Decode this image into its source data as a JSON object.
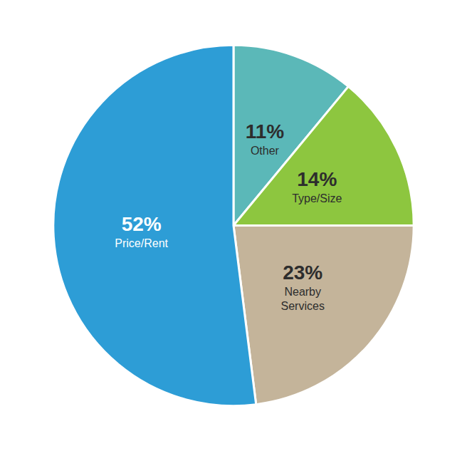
{
  "chart_data": {
    "type": "pie",
    "categories": [
      "Other",
      "Type/Size",
      "Nearby\nServices",
      "Price/Rent"
    ],
    "values": [
      11,
      14,
      23,
      52
    ],
    "value_labels": [
      "11%",
      "14%",
      "23%",
      "52%"
    ],
    "colors": [
      "#5BB8B8",
      "#8DC63F",
      "#C4B49A",
      "#2D9DD6"
    ],
    "data_labels": true,
    "legend": false
  }
}
